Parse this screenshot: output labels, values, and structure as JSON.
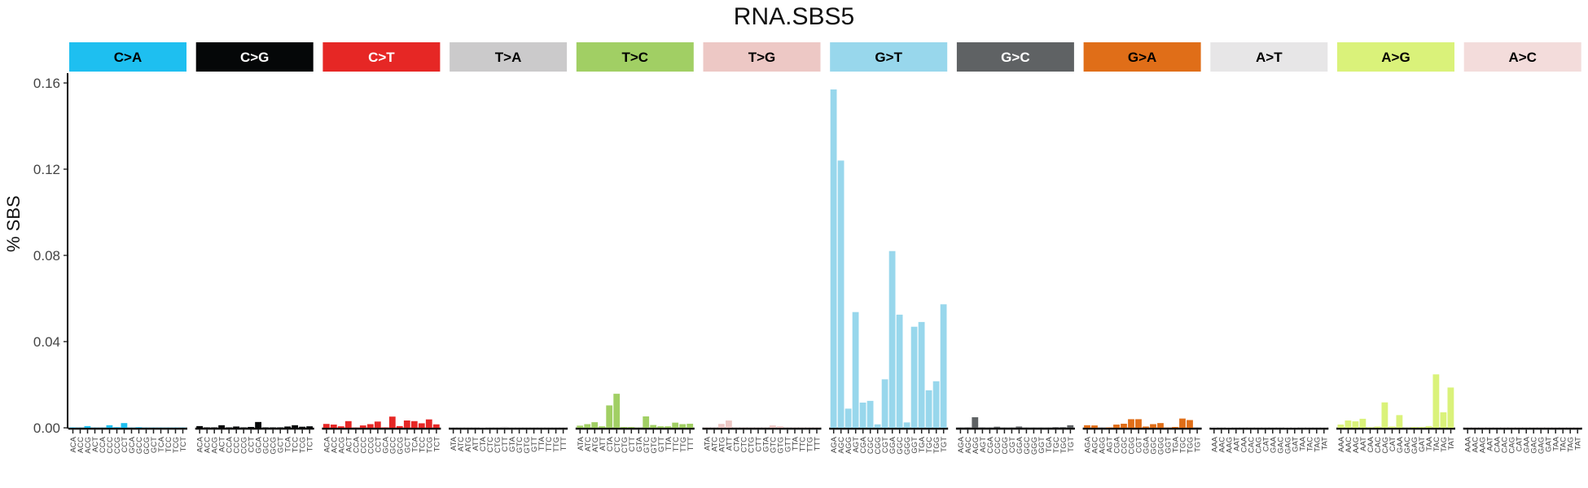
{
  "chart_data": {
    "type": "bar",
    "title": "RNA.SBS5",
    "xlabel": "",
    "ylabel": "% SBS",
    "ylim": [
      0,
      0.163
    ],
    "yticks": [
      0.0,
      0.04,
      0.08,
      0.12,
      0.16
    ],
    "ytick_labels": [
      "0.00",
      "0.04",
      "0.08",
      "0.12",
      "0.16"
    ],
    "grid": false,
    "legend": "none (facet strips)",
    "facets": [
      {
        "name": "C>A",
        "color": "#1EBFF0",
        "text_color": "#000000",
        "categories": [
          "ACA",
          "ACC",
          "ACG",
          "ACT",
          "CCA",
          "CCC",
          "CCG",
          "CCT",
          "GCA",
          "GCC",
          "GCG",
          "GCT",
          "TCA",
          "TCC",
          "TCG",
          "TCT"
        ],
        "values": [
          0.0002,
          0.0001,
          0.0008,
          0.0001,
          0.0001,
          0.0012,
          0.0003,
          0.0022,
          0.0001,
          0.0003,
          0.0001,
          0.0001,
          0.0001,
          0.0001,
          0.0001,
          0.0001
        ]
      },
      {
        "name": "C>G",
        "color": "#050708",
        "text_color": "#FFFFFF",
        "categories": [
          "ACA",
          "ACC",
          "ACG",
          "ACT",
          "CCA",
          "CCC",
          "CCG",
          "CCT",
          "GCA",
          "GCC",
          "GCG",
          "GCT",
          "TCA",
          "TCC",
          "TCG",
          "TCT"
        ],
        "values": [
          0.0008,
          0.0002,
          0.0002,
          0.0012,
          0.0002,
          0.0006,
          0.0002,
          0.0004,
          0.0027,
          0.0002,
          0.0002,
          0.0002,
          0.0006,
          0.0012,
          0.0005,
          0.0007
        ]
      },
      {
        "name": "C>T",
        "color": "#E62725",
        "text_color": "#FFFFFF",
        "categories": [
          "ACA",
          "ACC",
          "ACG",
          "ACT",
          "CCA",
          "CCC",
          "CCG",
          "CCT",
          "GCA",
          "GCC",
          "GCG",
          "GCT",
          "TCA",
          "TCC",
          "TCG",
          "TCT"
        ],
        "values": [
          0.0018,
          0.0015,
          0.0007,
          0.0031,
          0.0001,
          0.0011,
          0.0017,
          0.0029,
          0.0002,
          0.0052,
          0.0008,
          0.0034,
          0.0031,
          0.0021,
          0.0039,
          0.0016
        ]
      },
      {
        "name": "T>A",
        "color": "#CBCACB",
        "text_color": "#000000",
        "categories": [
          "ATA",
          "ATC",
          "ATG",
          "ATT",
          "CTA",
          "CTC",
          "CTG",
          "CTT",
          "GTA",
          "GTC",
          "GTG",
          "GTT",
          "TTA",
          "TTC",
          "TTG",
          "TTT"
        ],
        "values": [
          0.0001,
          0.0001,
          0.0001,
          0.0001,
          0.0002,
          0.0001,
          0.0001,
          0.0005,
          0.0001,
          0.0001,
          0.0001,
          0.0001,
          0.0001,
          0.0001,
          0.0001,
          0.0001
        ]
      },
      {
        "name": "T>C",
        "color": "#A1CF64",
        "text_color": "#000000",
        "categories": [
          "ATA",
          "ATC",
          "ATG",
          "ATT",
          "CTA",
          "CTC",
          "CTG",
          "CTT",
          "GTA",
          "GTC",
          "GTG",
          "GTT",
          "TTA",
          "TTC",
          "TTG",
          "TTT"
        ],
        "values": [
          0.001,
          0.0017,
          0.0026,
          0.0007,
          0.0104,
          0.0158,
          0.0004,
          0.0004,
          0.0001,
          0.0053,
          0.0013,
          0.0007,
          0.0007,
          0.0024,
          0.0017,
          0.0019
        ]
      },
      {
        "name": "T>G",
        "color": "#EDC8C5",
        "text_color": "#000000",
        "categories": [
          "ATA",
          "ATC",
          "ATG",
          "ATT",
          "CTA",
          "CTC",
          "CTG",
          "CTT",
          "GTA",
          "GTC",
          "GTG",
          "GTT",
          "TTA",
          "TTC",
          "TTG",
          "TTT"
        ],
        "values": [
          0.0001,
          0.0001,
          0.0018,
          0.0034,
          0.0001,
          0.0001,
          0.0001,
          0.0001,
          0.0001,
          0.0011,
          0.0007,
          0.0001,
          0.0001,
          0.0001,
          0.0001,
          0.0001
        ]
      },
      {
        "name": "G>T",
        "color": "#98D7EC",
        "text_color": "#000000",
        "categories": [
          "AGA",
          "AGC",
          "AGG",
          "AGT",
          "CGA",
          "CGC",
          "CGG",
          "CGT",
          "GGA",
          "GGC",
          "GGG",
          "GGT",
          "TGA",
          "TGC",
          "TGG",
          "TGT"
        ],
        "values": [
          0.157,
          0.124,
          0.0089,
          0.0537,
          0.0117,
          0.0125,
          0.0016,
          0.0225,
          0.082,
          0.0525,
          0.0025,
          0.0469,
          0.0491,
          0.0174,
          0.0216,
          0.0573
        ]
      },
      {
        "name": "G>C",
        "color": "#5F6264",
        "text_color": "#FFFFFF",
        "categories": [
          "AGA",
          "AGC",
          "AGG",
          "AGT",
          "CGA",
          "CGC",
          "CGG",
          "CGT",
          "GGA",
          "GGC",
          "GGG",
          "GGT",
          "TGA",
          "TGC",
          "TGG",
          "TGT"
        ],
        "values": [
          0.0001,
          0.0002,
          0.0049,
          0.0002,
          0.0001,
          0.0005,
          0.0001,
          0.0001,
          0.0006,
          0.0001,
          0.0001,
          0.0001,
          0.0001,
          0.0003,
          0.0003,
          0.0012
        ]
      },
      {
        "name": "G>A",
        "color": "#E06E18",
        "text_color": "#000000",
        "categories": [
          "AGA",
          "AGC",
          "AGG",
          "AGT",
          "CGA",
          "CGC",
          "CGG",
          "CGT",
          "GGA",
          "GGC",
          "GGG",
          "GGT",
          "TGA",
          "TGC",
          "TGG",
          "TGT"
        ],
        "values": [
          0.0012,
          0.0011,
          0.0,
          0.0002,
          0.0015,
          0.0019,
          0.004,
          0.004,
          0.0006,
          0.0017,
          0.0022,
          0.0001,
          0.0004,
          0.0043,
          0.0036,
          0.0
        ]
      },
      {
        "name": "A>T",
        "color": "#E7E6E7",
        "text_color": "#000000",
        "categories": [
          "AAA",
          "AAC",
          "AAG",
          "AAT",
          "CAA",
          "CAC",
          "CAG",
          "CAT",
          "GAA",
          "GAC",
          "GAG",
          "GAT",
          "TAA",
          "TAC",
          "TAG",
          "TAT"
        ],
        "values": [
          0.0007,
          0.0001,
          0.0004,
          0.0001,
          0.0001,
          0.0001,
          0.0001,
          0.0001,
          0.0001,
          0.0001,
          0.0004,
          0.0004,
          0.0001,
          0.0001,
          0.0001,
          0.0001
        ]
      },
      {
        "name": "A>G",
        "color": "#DAF27A",
        "text_color": "#000000",
        "categories": [
          "AAA",
          "AAC",
          "AAG",
          "AAT",
          "CAA",
          "CAC",
          "CAG",
          "CAT",
          "GAA",
          "GAC",
          "GAG",
          "GAT",
          "TAA",
          "TAC",
          "TAG",
          "TAT"
        ],
        "values": [
          0.0015,
          0.0034,
          0.003,
          0.0042,
          0.0003,
          0.0006,
          0.0118,
          0.0006,
          0.0059,
          0.0001,
          0.0004,
          0.0004,
          0.0008,
          0.0248,
          0.0072,
          0.0187
        ]
      },
      {
        "name": "A>C",
        "color": "#F3DCDB",
        "text_color": "#000000",
        "categories": [
          "AAA",
          "AAC",
          "AAG",
          "AAT",
          "CAA",
          "CAC",
          "CAG",
          "CAT",
          "GAA",
          "GAC",
          "GAG",
          "GAT",
          "TAA",
          "TAC",
          "TAG",
          "TAT"
        ],
        "values": [
          0.0001,
          0.0001,
          0.0001,
          0.0001,
          0.0001,
          0.0001,
          0.0001,
          0.0001,
          0.0001,
          0.0001,
          0.0001,
          0.0001,
          0.0001,
          0.0001,
          0.0001,
          0.0001
        ]
      }
    ]
  }
}
